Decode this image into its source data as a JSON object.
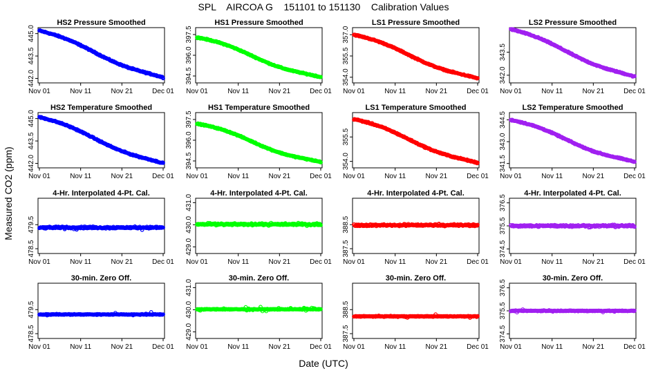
{
  "page": {
    "title": "SPL    AIRCOA G    151101 to 151130    Calibration Values",
    "ylabel": "Measured CO2 (ppm)",
    "xlabel": "Date (UTC)"
  },
  "colors": {
    "HS2": "#0000ff",
    "HS1": "#00ff00",
    "LS1": "#ff0000",
    "LS2": "#a020f0"
  },
  "chart_data": {
    "type": "scatter",
    "x_ticks": [
      "Nov 01",
      "Nov 11",
      "Nov 21",
      "Dec 01"
    ],
    "x_range_days": [
      0,
      30
    ],
    "panels": [
      {
        "title": "HS2 Pressure Smoothed",
        "series": "HS2",
        "ylim": [
          441.7,
          445.4
        ],
        "yticks": [
          "442.0",
          "443.5",
          "445.0"
        ],
        "yvals": [
          442.0,
          443.5,
          445.0
        ],
        "trend": [
          445.2,
          441.95
        ],
        "noise": 0.06
      },
      {
        "title": "HS1 Pressure Smoothed",
        "series": "HS1",
        "ylim": [
          394.0,
          398.0
        ],
        "yticks": [
          "394.5",
          "396.0",
          "397.5"
        ],
        "yvals": [
          394.5,
          396.0,
          397.5
        ],
        "trend": [
          397.3,
          394.3
        ],
        "noise": 0.06
      },
      {
        "title": "LS1 Pressure Smoothed",
        "series": "LS1",
        "ylim": [
          353.6,
          357.5
        ],
        "yticks": [
          "354.0",
          "355.5",
          "357.0"
        ],
        "yvals": [
          354.0,
          355.5,
          357.0
        ],
        "trend": [
          357.0,
          353.8
        ],
        "noise": 0.06
      },
      {
        "title": "LS2 Pressure Smoothed",
        "series": "LS2",
        "ylim": [
          341.5,
          345.1
        ],
        "yticks": [
          "342.0",
          "343.5"
        ],
        "yvals": [
          342.0,
          343.5
        ],
        "trend": [
          345.0,
          341.8
        ],
        "noise": 0.06
      },
      {
        "title": "HS2 Temperature Smoothed",
        "series": "HS2",
        "ylim": [
          441.7,
          445.4
        ],
        "yticks": [
          "442.0",
          "443.5",
          "445.0"
        ],
        "yvals": [
          442.0,
          443.5,
          445.0
        ],
        "trend": [
          445.1,
          441.9
        ],
        "noise": 0.06
      },
      {
        "title": "HS1 Temperature Smoothed",
        "series": "HS1",
        "ylim": [
          394.0,
          398.0
        ],
        "yticks": [
          "394.5",
          "396.0",
          "397.5"
        ],
        "yvals": [
          394.5,
          396.0,
          397.5
        ],
        "trend": [
          397.2,
          394.3
        ],
        "noise": 0.06
      },
      {
        "title": "LS1 Temperature Smoothed",
        "series": "LS1",
        "ylim": [
          353.6,
          357.0
        ],
        "yticks": [
          "354.0",
          "355.5"
        ],
        "yvals": [
          354.0,
          355.5
        ],
        "trend": [
          356.6,
          353.8
        ],
        "noise": 0.06
      },
      {
        "title": "LS2 Temperature Smoothed",
        "series": "LS2",
        "ylim": [
          341.2,
          345.0
        ],
        "yticks": [
          "341.5",
          "343.0",
          "344.5"
        ],
        "yvals": [
          341.5,
          343.0,
          344.5
        ],
        "trend": [
          344.5,
          341.5
        ],
        "noise": 0.06
      },
      {
        "title": "4-Hr. Interpolated 4-Pt. Cal.",
        "series": "HS2",
        "ylim": [
          478.3,
          480.6
        ],
        "yticks": [
          "478.5",
          "479.5"
        ],
        "yvals": [
          478.5,
          479.5
        ],
        "trend": [
          479.38,
          479.38
        ],
        "noise": 0.06
      },
      {
        "title": "4-Hr. Interpolated 4-Pt. Cal.",
        "series": "HS1",
        "ylim": [
          428.7,
          431.2
        ],
        "yticks": [
          "429.0",
          "430.0",
          "431.0"
        ],
        "yvals": [
          429.0,
          430.0,
          431.0
        ],
        "trend": [
          430.02,
          430.02
        ],
        "noise": 0.06
      },
      {
        "title": "4-Hr. Interpolated 4-Pt. Cal.",
        "series": "LS1",
        "ylim": [
          387.3,
          389.6
        ],
        "yticks": [
          "387.5",
          "388.5"
        ],
        "yvals": [
          387.5,
          388.5
        ],
        "trend": [
          388.48,
          388.48
        ],
        "noise": 0.06
      },
      {
        "title": "4-Hr. Interpolated 4-Pt. Cal.",
        "series": "LS2",
        "ylim": [
          374.3,
          376.7
        ],
        "yticks": [
          "374.5",
          "375.5",
          "376.5"
        ],
        "yvals": [
          374.5,
          375.5,
          376.5
        ],
        "trend": [
          375.5,
          375.5
        ],
        "noise": 0.06
      },
      {
        "title": "30-min. Zero Off.",
        "series": "HS2",
        "ylim": [
          478.3,
          480.6
        ],
        "yticks": [
          "478.5",
          "479.5"
        ],
        "yvals": [
          478.5,
          479.5
        ],
        "trend": [
          479.3,
          479.3
        ],
        "noise": 0.025
      },
      {
        "title": "30-min. Zero Off.",
        "series": "HS1",
        "ylim": [
          428.7,
          431.2
        ],
        "yticks": [
          "429.0",
          "430.0",
          "431.0"
        ],
        "yvals": [
          429.0,
          430.0,
          431.0
        ],
        "trend": [
          430.02,
          430.02
        ],
        "noise": 0.025
      },
      {
        "title": "30-min. Zero Off.",
        "series": "LS1",
        "ylim": [
          387.3,
          389.6
        ],
        "yticks": [
          "387.5",
          "388.5"
        ],
        "yvals": [
          387.5,
          388.5
        ],
        "trend": [
          388.22,
          388.22
        ],
        "noise": 0.025
      },
      {
        "title": "30-min. Zero Off.",
        "series": "LS2",
        "ylim": [
          374.3,
          376.7
        ],
        "yticks": [
          "374.5",
          "375.5",
          "376.5"
        ],
        "yvals": [
          374.5,
          375.5,
          376.5
        ],
        "trend": [
          375.5,
          375.5
        ],
        "noise": 0.025
      }
    ]
  }
}
